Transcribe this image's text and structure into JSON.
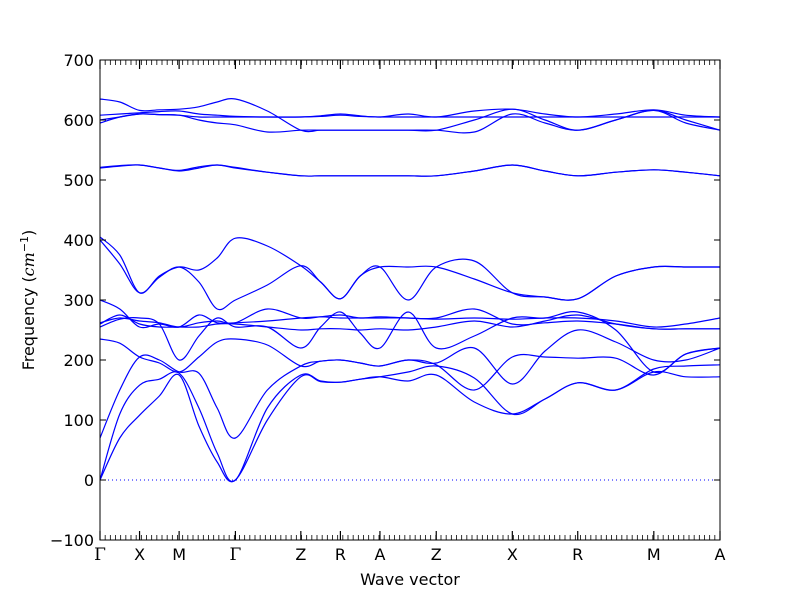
{
  "chart_data": {
    "type": "line",
    "title": "",
    "xlabel": "Wave vector",
    "ylabel": {
      "prefix": "Frequency (",
      "unit_base": "cm",
      "unit_exp": "−1",
      "suffix": ")"
    },
    "ylim": [
      -100,
      700
    ],
    "yticks": [
      "−100",
      "0",
      "100",
      "200",
      "300",
      "400",
      "500",
      "600",
      "700"
    ],
    "ytick_values": [
      -100,
      0,
      100,
      200,
      300,
      400,
      500,
      600,
      700
    ],
    "xlim": [
      0,
      8.15
    ],
    "x_high_symmetry": [
      {
        "label": "Γ",
        "x": 0.0
      },
      {
        "label": "X",
        "x": 0.52
      },
      {
        "label": "M",
        "x": 1.04
      },
      {
        "label": "Γ",
        "x": 1.78
      },
      {
        "label": "Z",
        "x": 2.64
      },
      {
        "label": "R",
        "x": 3.16
      },
      {
        "label": "A",
        "x": 3.68
      },
      {
        "label": "Z",
        "x": 4.42
      },
      {
        "label": "X",
        "x": 5.42
      },
      {
        "label": "R",
        "x": 6.28
      },
      {
        "label": "M",
        "x": 7.28
      },
      {
        "label": "A",
        "x": 8.15
      }
    ],
    "zero_line": {
      "y": 0,
      "style": "dotted"
    },
    "line_color": "#0000ff",
    "series": [
      {
        "x": [
          0,
          0.26,
          0.52,
          0.78,
          1.04,
          1.3,
          1.54,
          1.78,
          2.2,
          2.64,
          2.9,
          3.16,
          3.42,
          3.68,
          4.05,
          4.42,
          4.92,
          5.42,
          5.85,
          6.28,
          6.78,
          7.28,
          7.7,
          8.15
        ],
        "y": [
          0,
          70,
          108,
          140,
          175,
          90,
          30,
          0,
          100,
          172,
          164,
          163,
          168,
          172,
          165,
          175,
          130,
          110,
          135,
          162,
          150,
          180,
          172,
          172
        ]
      },
      {
        "x": [
          0,
          0.26,
          0.52,
          0.78,
          1.04,
          1.3,
          1.54,
          1.78,
          2.2,
          2.64,
          2.9,
          3.16,
          3.42,
          3.68,
          4.05,
          4.42,
          4.92,
          5.42,
          5.85,
          6.28,
          6.78,
          7.28,
          7.7,
          8.15
        ],
        "y": [
          0,
          110,
          158,
          168,
          178,
          120,
          45,
          0,
          120,
          175,
          165,
          163,
          168,
          172,
          180,
          190,
          170,
          110,
          135,
          162,
          150,
          185,
          190,
          192
        ]
      },
      {
        "x": [
          0,
          0.26,
          0.52,
          0.78,
          1.04,
          1.3,
          1.54,
          1.78,
          2.2,
          2.64,
          2.9,
          3.16,
          3.42,
          3.68,
          4.05,
          4.42,
          4.92,
          5.42,
          5.85,
          6.28,
          6.78,
          7.28,
          7.7,
          8.15
        ],
        "y": [
          70,
          150,
          205,
          200,
          180,
          178,
          120,
          70,
          150,
          190,
          198,
          200,
          195,
          190,
          200,
          192,
          150,
          205,
          205,
          203,
          203,
          175,
          210,
          220
        ]
      },
      {
        "x": [
          0,
          0.26,
          0.52,
          0.78,
          1.04,
          1.3,
          1.54,
          1.78,
          2.2,
          2.64,
          2.9,
          3.16,
          3.42,
          3.68,
          4.05,
          4.42,
          4.92,
          5.42,
          5.85,
          6.28,
          6.78,
          7.28,
          7.7,
          8.15
        ],
        "y": [
          235,
          228,
          205,
          195,
          180,
          205,
          230,
          235,
          225,
          190,
          198,
          200,
          195,
          190,
          200,
          195,
          220,
          160,
          215,
          250,
          230,
          200,
          200,
          220
        ]
      },
      {
        "x": [
          0,
          0.26,
          0.52,
          0.78,
          1.04,
          1.3,
          1.54,
          1.78,
          2.2,
          2.64,
          2.9,
          3.16,
          3.42,
          3.68,
          4.05,
          4.42,
          4.92,
          5.42,
          5.85,
          6.28,
          6.78,
          7.28,
          7.7,
          8.15
        ],
        "y": [
          255,
          268,
          270,
          260,
          200,
          240,
          270,
          255,
          255,
          220,
          255,
          280,
          245,
          220,
          280,
          220,
          240,
          270,
          270,
          280,
          250,
          180,
          210,
          220
        ]
      },
      {
        "x": [
          0,
          0.26,
          0.52,
          0.78,
          1.04,
          1.3,
          1.54,
          1.78,
          2.2,
          2.64,
          2.9,
          3.16,
          3.42,
          3.68,
          4.05,
          4.42,
          4.92,
          5.42,
          5.85,
          6.28,
          6.78,
          7.28,
          7.7,
          8.15
        ],
        "y": [
          260,
          275,
          260,
          255,
          255,
          255,
          260,
          260,
          255,
          250,
          252,
          252,
          250,
          252,
          250,
          255,
          265,
          255,
          265,
          275,
          260,
          252,
          252,
          252
        ]
      },
      {
        "x": [
          0,
          0.26,
          0.52,
          0.78,
          1.04,
          1.3,
          1.54,
          1.78,
          2.2,
          2.64,
          2.9,
          3.16,
          3.42,
          3.68,
          4.05,
          4.42,
          4.92,
          5.42,
          5.85,
          6.28,
          6.78,
          7.28,
          7.7,
          8.15
        ],
        "y": [
          262,
          270,
          265,
          262,
          255,
          262,
          265,
          262,
          285,
          270,
          272,
          275,
          270,
          272,
          270,
          270,
          285,
          260,
          262,
          265,
          260,
          252,
          252,
          252
        ]
      },
      {
        "x": [
          0,
          0.26,
          0.52,
          0.78,
          1.04,
          1.3,
          1.54,
          1.78,
          2.2,
          2.64,
          2.9,
          3.16,
          3.42,
          3.68,
          4.05,
          4.42,
          4.92,
          5.42,
          5.85,
          6.28,
          6.78,
          7.28,
          7.7,
          8.15
        ],
        "y": [
          300,
          285,
          255,
          260,
          255,
          275,
          262,
          262,
          265,
          270,
          272,
          270,
          270,
          270,
          270,
          268,
          270,
          268,
          270,
          270,
          265,
          255,
          260,
          270
        ]
      },
      {
        "x": [
          0,
          0.26,
          0.52,
          0.78,
          1.04,
          1.3,
          1.54,
          1.78,
          2.2,
          2.64,
          2.9,
          3.16,
          3.42,
          3.68,
          4.05,
          4.42,
          4.92,
          5.42,
          5.85,
          6.28,
          6.78,
          7.28,
          7.7,
          8.15
        ],
        "y": [
          400,
          360,
          312,
          338,
          355,
          330,
          285,
          300,
          325,
          357,
          330,
          302,
          340,
          355,
          355,
          355,
          335,
          312,
          305,
          302,
          340,
          355,
          355,
          355
        ]
      },
      {
        "x": [
          0,
          0.26,
          0.52,
          0.78,
          1.04,
          1.3,
          1.54,
          1.78,
          2.2,
          2.64,
          2.9,
          3.16,
          3.42,
          3.68,
          4.05,
          4.42,
          4.92,
          5.42,
          5.85,
          6.28,
          6.78,
          7.28,
          7.7,
          8.15
        ],
        "y": [
          405,
          375,
          312,
          340,
          355,
          350,
          370,
          403,
          390,
          357,
          330,
          302,
          340,
          355,
          300,
          355,
          365,
          312,
          305,
          302,
          340,
          355,
          355,
          355
        ]
      },
      {
        "x": [
          0,
          0.26,
          0.52,
          0.78,
          1.04,
          1.3,
          1.54,
          1.78,
          2.2,
          2.64,
          2.9,
          3.16,
          3.42,
          3.68,
          4.05,
          4.42,
          4.92,
          5.42,
          5.85,
          6.28,
          6.78,
          7.28,
          7.7,
          8.15
        ],
        "y": [
          520,
          523,
          525,
          520,
          515,
          520,
          525,
          520,
          513,
          507,
          507,
          507,
          507,
          507,
          507,
          507,
          515,
          525,
          515,
          507,
          513,
          517,
          513,
          507
        ]
      },
      {
        "x": [
          0,
          0.26,
          0.52,
          0.78,
          1.04,
          1.3,
          1.54,
          1.78,
          2.2,
          2.64,
          2.9,
          3.16,
          3.42,
          3.68,
          4.05,
          4.42,
          4.92,
          5.42,
          5.85,
          6.28,
          6.78,
          7.28,
          7.7,
          8.15
        ],
        "y": [
          521,
          524,
          525,
          520,
          516,
          522,
          525,
          521,
          513,
          507,
          507,
          507,
          507,
          507,
          507,
          507,
          515,
          525,
          515,
          507,
          513,
          517,
          513,
          507
        ]
      },
      {
        "x": [
          0,
          0.26,
          0.52,
          0.78,
          1.04,
          1.3,
          1.54,
          1.78,
          2.2,
          2.64,
          2.9,
          3.16,
          3.42,
          3.68,
          4.05,
          4.42,
          4.92,
          5.42,
          5.85,
          6.28,
          6.78,
          7.28,
          7.7,
          8.15
        ],
        "y": [
          595,
          605,
          610,
          609,
          608,
          600,
          595,
          592,
          580,
          583,
          583,
          583,
          583,
          583,
          583,
          583,
          580,
          610,
          595,
          583,
          600,
          616,
          595,
          583
        ]
      },
      {
        "x": [
          0,
          0.26,
          0.52,
          0.78,
          1.04,
          1.3,
          1.54,
          1.78,
          2.2,
          2.64,
          2.9,
          3.16,
          3.42,
          3.68,
          4.05,
          4.42,
          4.92,
          5.42,
          5.85,
          6.28,
          6.78,
          7.28,
          7.7,
          8.15
        ],
        "y": [
          600,
          605,
          610,
          609,
          608,
          605,
          605,
          605,
          605,
          605,
          606,
          608,
          606,
          605,
          605,
          605,
          605,
          605,
          605,
          605,
          605,
          605,
          605,
          605
        ]
      },
      {
        "x": [
          0,
          0.26,
          0.52,
          0.78,
          1.04,
          1.3,
          1.54,
          1.78,
          2.2,
          2.64,
          2.9,
          3.16,
          3.42,
          3.68,
          4.05,
          4.42,
          4.92,
          5.42,
          5.85,
          6.28,
          6.78,
          7.28,
          7.7,
          8.15
        ],
        "y": [
          608,
          610,
          612,
          614,
          615,
          610,
          608,
          606,
          605,
          605,
          607,
          610,
          607,
          605,
          610,
          605,
          615,
          618,
          610,
          605,
          610,
          617,
          608,
          605
        ]
      },
      {
        "x": [
          0,
          0.26,
          0.52,
          0.78,
          1.04,
          1.3,
          1.54,
          1.78,
          2.2,
          2.64,
          2.9,
          3.16,
          3.42,
          3.68,
          4.05,
          4.42,
          4.92,
          5.42,
          5.85,
          6.28,
          6.78,
          7.28,
          7.7,
          8.15
        ],
        "y": [
          635,
          630,
          616,
          617,
          618,
          622,
          630,
          635,
          615,
          583,
          583,
          583,
          583,
          583,
          583,
          583,
          600,
          618,
          600,
          583,
          600,
          616,
          600,
          583
        ]
      }
    ]
  }
}
